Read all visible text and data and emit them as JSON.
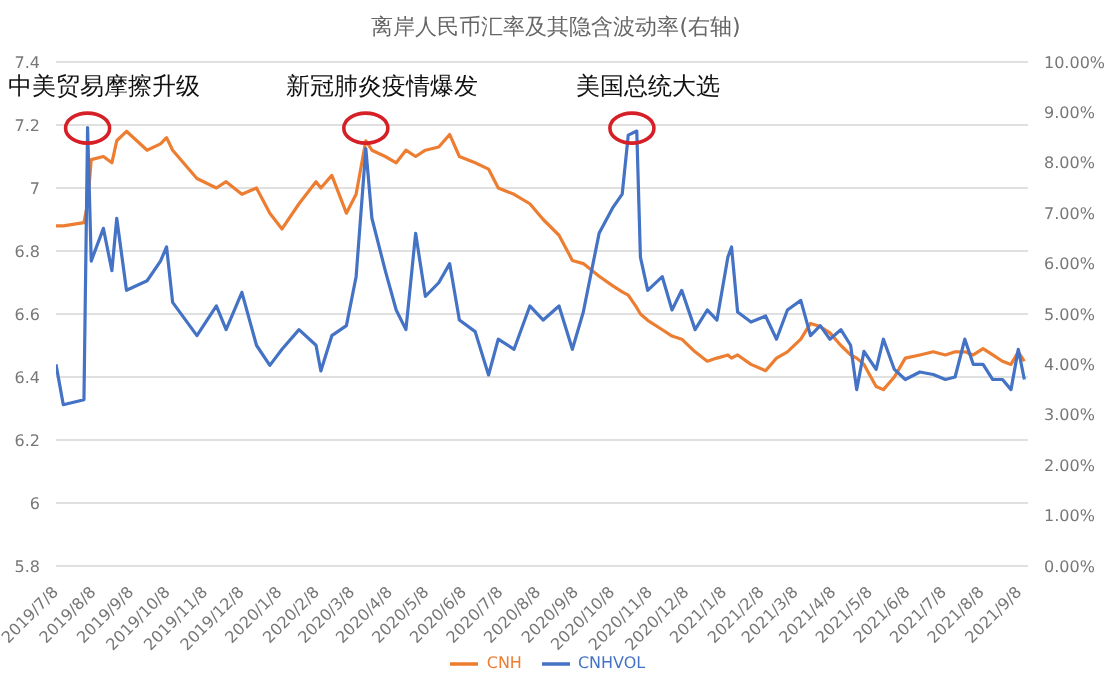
{
  "chart_data": {
    "type": "line",
    "title": "离岸人民币汇率及其隐含波动率(右轴)",
    "x": [
      "2019-07-08",
      "2019-07-14",
      "2019-07-31",
      "2019-08-03",
      "2019-08-06",
      "2019-08-16",
      "2019-08-23",
      "2019-08-27",
      "2019-09-04",
      "2019-09-21",
      "2019-10-02",
      "2019-10-07",
      "2019-10-12",
      "2019-11-01",
      "2019-11-17",
      "2019-11-25",
      "2019-12-08",
      "2019-12-20",
      "2019-12-31",
      "2020-01-10",
      "2020-01-24",
      "2020-02-07",
      "2020-02-11",
      "2020-02-20",
      "2020-03-03",
      "2020-03-11",
      "2020-03-19",
      "2020-03-24",
      "2020-04-04",
      "2020-04-13",
      "2020-04-21",
      "2020-04-29",
      "2020-05-07",
      "2020-05-18",
      "2020-05-27",
      "2020-06-04",
      "2020-06-17",
      "2020-06-28",
      "2020-07-06",
      "2020-07-19",
      "2020-08-01",
      "2020-08-12",
      "2020-08-25",
      "2020-09-05",
      "2020-09-14",
      "2020-09-27",
      "2020-10-08",
      "2020-10-16",
      "2020-10-21",
      "2020-10-28",
      "2020-10-31",
      "2020-11-06",
      "2020-11-18",
      "2020-11-26",
      "2020-12-04",
      "2020-12-15",
      "2020-12-25",
      "2021-01-02",
      "2021-01-11",
      "2021-01-14",
      "2021-01-19",
      "2021-01-30",
      "2021-02-11",
      "2021-02-20",
      "2021-03-01",
      "2021-03-12",
      "2021-03-20",
      "2021-03-28",
      "2021-04-05",
      "2021-04-14",
      "2021-04-22",
      "2021-04-27",
      "2021-05-03",
      "2021-05-13",
      "2021-05-19",
      "2021-05-28",
      "2021-06-06",
      "2021-06-18",
      "2021-06-29",
      "2021-07-09",
      "2021-07-17",
      "2021-07-25",
      "2021-08-01",
      "2021-08-09",
      "2021-08-17",
      "2021-08-25",
      "2021-09-01",
      "2021-09-07",
      "2021-09-12"
    ],
    "series": [
      {
        "name": "CNH",
        "color": "#ed7d31",
        "values": [
          6.88,
          6.88,
          6.89,
          6.95,
          7.09,
          7.1,
          7.08,
          7.15,
          7.18,
          7.12,
          7.14,
          7.16,
          7.12,
          7.03,
          7.0,
          7.02,
          6.98,
          7.0,
          6.92,
          6.87,
          6.95,
          7.02,
          7.0,
          7.04,
          6.92,
          6.98,
          7.15,
          7.12,
          7.1,
          7.08,
          7.12,
          7.1,
          7.12,
          7.13,
          7.17,
          7.1,
          7.08,
          7.06,
          7.0,
          6.98,
          6.95,
          6.9,
          6.85,
          6.77,
          6.76,
          6.72,
          6.69,
          6.67,
          6.66,
          6.62,
          6.6,
          6.58,
          6.55,
          6.53,
          6.52,
          6.48,
          6.45,
          6.46,
          6.47,
          6.46,
          6.47,
          6.44,
          6.42,
          6.46,
          6.48,
          6.52,
          6.57,
          6.56,
          6.54,
          6.5,
          6.47,
          6.46,
          6.44,
          6.37,
          6.36,
          6.4,
          6.46,
          6.47,
          6.48,
          6.47,
          6.48,
          6.48,
          6.47,
          6.49,
          6.47,
          6.45,
          6.44,
          6.48,
          6.45
        ]
      },
      {
        "name": "CNHVOL",
        "color": "#4472c4",
        "axis": "y2",
        "values": [
          4.0,
          3.2,
          3.3,
          8.7,
          6.05,
          6.7,
          5.86,
          6.9,
          5.47,
          5.66,
          6.05,
          6.33,
          5.23,
          4.57,
          5.16,
          4.69,
          5.43,
          4.38,
          3.98,
          4.3,
          4.69,
          4.38,
          3.87,
          4.57,
          4.77,
          5.74,
          8.28,
          6.9,
          5.86,
          5.08,
          4.69,
          6.6,
          5.35,
          5.62,
          6.0,
          4.88,
          4.65,
          3.79,
          4.5,
          4.3,
          5.16,
          4.88,
          5.16,
          4.3,
          5.04,
          6.6,
          7.1,
          7.38,
          8.55,
          8.63,
          6.13,
          5.47,
          5.74,
          5.08,
          5.47,
          4.69,
          5.08,
          4.88,
          6.13,
          6.33,
          5.04,
          4.84,
          4.96,
          4.5,
          5.08,
          5.27,
          4.57,
          4.77,
          4.5,
          4.69,
          4.38,
          3.5,
          4.26,
          3.9,
          4.5,
          3.9,
          3.7,
          3.85,
          3.8,
          3.7,
          3.75,
          4.5,
          4.0,
          4.0,
          3.7,
          3.7,
          3.5,
          4.3,
          3.7
        ]
      }
    ],
    "xlim": [
      "2019-07-08",
      "2021-09-15"
    ],
    "xticks": [
      {
        "value": "2019-07-08",
        "label": "2019/7/8"
      },
      {
        "value": "2019-08-08",
        "label": "2019/8/8"
      },
      {
        "value": "2019-09-08",
        "label": "2019/9/8"
      },
      {
        "value": "2019-10-08",
        "label": "2019/10/8"
      },
      {
        "value": "2019-11-08",
        "label": "2019/11/8"
      },
      {
        "value": "2019-12-08",
        "label": "2019/12/8"
      },
      {
        "value": "2020-01-08",
        "label": "2020/1/8"
      },
      {
        "value": "2020-02-08",
        "label": "2020/2/8"
      },
      {
        "value": "2020-03-08",
        "label": "2020/3/8"
      },
      {
        "value": "2020-04-08",
        "label": "2020/4/8"
      },
      {
        "value": "2020-05-08",
        "label": "2020/5/8"
      },
      {
        "value": "2020-06-08",
        "label": "2020/6/8"
      },
      {
        "value": "2020-07-08",
        "label": "2020/7/8"
      },
      {
        "value": "2020-08-08",
        "label": "2020/8/8"
      },
      {
        "value": "2020-09-08",
        "label": "2020/9/8"
      },
      {
        "value": "2020-10-08",
        "label": "2020/10/8"
      },
      {
        "value": "2020-11-08",
        "label": "2020/11/8"
      },
      {
        "value": "2020-12-08",
        "label": "2020/12/8"
      },
      {
        "value": "2021-01-08",
        "label": "2021/1/8"
      },
      {
        "value": "2021-02-08",
        "label": "2021/2/8"
      },
      {
        "value": "2021-03-08",
        "label": "2021/3/8"
      },
      {
        "value": "2021-04-08",
        "label": "2021/4/8"
      },
      {
        "value": "2021-05-08",
        "label": "2021/5/8"
      },
      {
        "value": "2021-06-08",
        "label": "2021/6/8"
      },
      {
        "value": "2021-07-08",
        "label": "2021/7/8"
      },
      {
        "value": "2021-08-08",
        "label": "2021/8/8"
      },
      {
        "value": "2021-09-08",
        "label": "2021/9/8"
      }
    ],
    "ylim": [
      5.8,
      7.4
    ],
    "yticks": [
      5.8,
      6,
      6.2,
      6.4,
      6.6,
      6.8,
      7,
      7.2,
      7.4
    ],
    "y2lim": [
      0,
      10
    ],
    "y2ticks": [
      {
        "value": 0,
        "label": "0.00%"
      },
      {
        "value": 1,
        "label": "1.00%"
      },
      {
        "value": 2,
        "label": "2.00%"
      },
      {
        "value": 3,
        "label": "3.00%"
      },
      {
        "value": 4,
        "label": "4.00%"
      },
      {
        "value": 5,
        "label": "5.00%"
      },
      {
        "value": 6,
        "label": "6.00%"
      },
      {
        "value": 7,
        "label": "7.00%"
      },
      {
        "value": 8,
        "label": "8.00%"
      },
      {
        "value": 9,
        "label": "9.00%"
      },
      {
        "value": 10,
        "label": "10.00%"
      }
    ],
    "annotations": [
      {
        "text": "中美贸易摩擦升级",
        "x": "2019-08-03",
        "y": 7.19
      },
      {
        "text": "新冠肺炎疫情爆发",
        "x": "2020-03-19",
        "y": 7.19
      },
      {
        "text": "美国总统大选",
        "x": "2020-10-24",
        "y": 7.19
      }
    ],
    "grid": "y",
    "legend": "bottom",
    "marker": "none",
    "line_style": "solid"
  }
}
